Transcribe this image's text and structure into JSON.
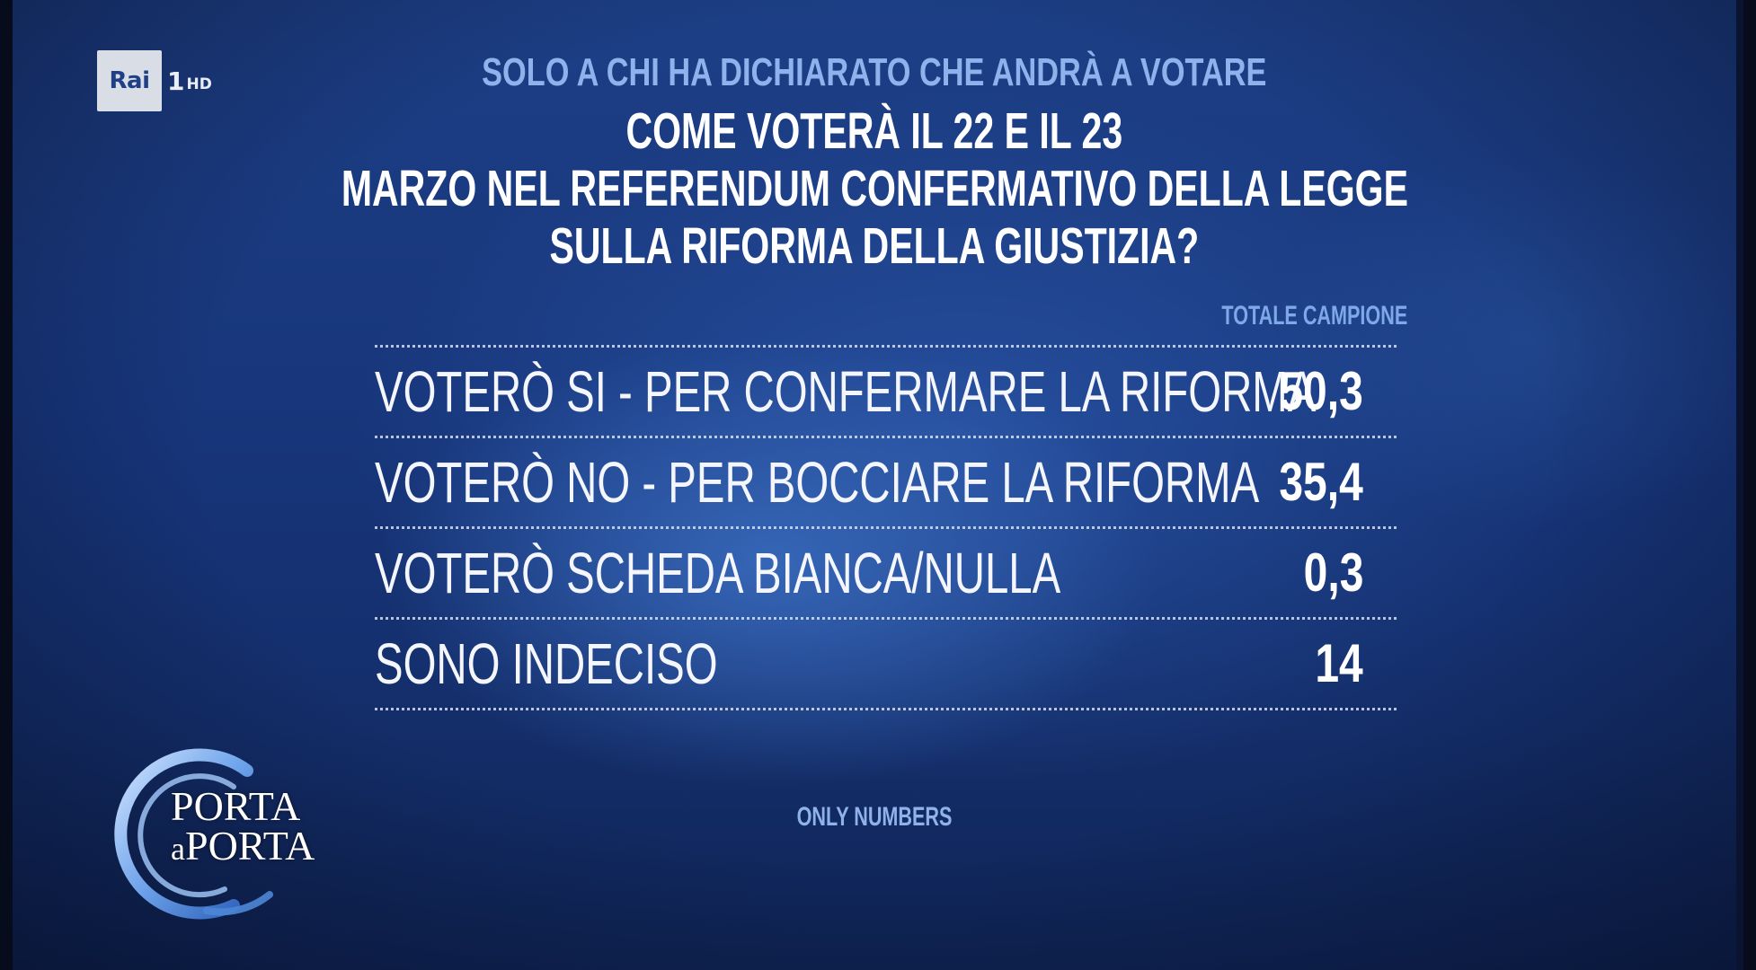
{
  "channel_logo": {
    "brand": "Rai",
    "channel": "1",
    "suffix": "HD"
  },
  "chart_data": {
    "type": "table",
    "subtitle": "SOLO A CHI HA DICHIARATO CHE ANDRÀ A VOTARE",
    "title_lines": [
      "COME VOTERÀ IL 22 E IL 23",
      "MARZO NEL REFERENDUM CONFERMATIVO DELLA LEGGE",
      "SULLA RIFORMA DELLA GIUSTIZIA?"
    ],
    "column_header": "TOTALE CAMPIONE",
    "rows": [
      {
        "label": "VOTERÒ SI - PER CONFERMARE LA RIFORMA",
        "value": "50,3"
      },
      {
        "label": "VOTERÒ NO - PER BOCCIARE LA RIFORMA",
        "value": "35,4"
      },
      {
        "label": "VOTERÒ SCHEDA BIANCA/NULLA",
        "value": "0,3"
      },
      {
        "label": "SONO INDECISO",
        "value": "14"
      }
    ]
  },
  "footer": {
    "source": "ONLY NUMBERS"
  },
  "show_logo": {
    "line1": "PORTA",
    "line2_small": "a",
    "line2": "PORTA"
  },
  "colors": {
    "background": "#17357a",
    "subtitle": "#8fb1ec",
    "title": "#ffffff",
    "divider": "#e1e8f5"
  }
}
